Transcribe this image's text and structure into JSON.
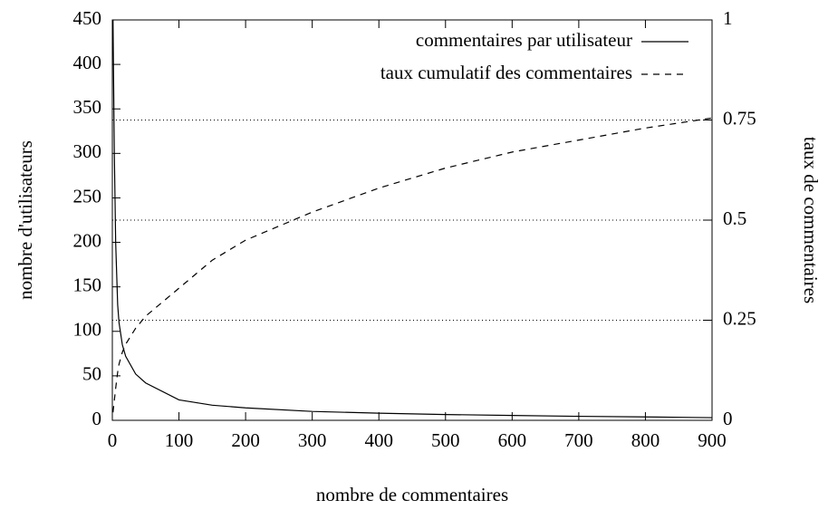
{
  "chart_data": {
    "type": "line",
    "x_label": "nombre de commentaires",
    "y_label": "nombre d'utilisateurs",
    "y2_label": "taux de commentaires",
    "x": [
      1,
      3,
      5,
      8,
      10,
      15,
      20,
      35,
      50,
      100,
      150,
      200,
      300,
      400,
      500,
      600,
      700,
      800,
      900
    ],
    "series": [
      {
        "name": "commentaires par utilisateur",
        "color": "#000000",
        "dash": "solid",
        "values": [
          450,
          300,
          200,
          130,
          110,
          85,
          72,
          52,
          42,
          23,
          17,
          14,
          10,
          8,
          6.5,
          5.5,
          4.5,
          3.8,
          3
        ]
      },
      {
        "name": "taux cumulatif des commentaires",
        "color": "#000000",
        "dash": "dashed",
        "axis": "y2",
        "values": [
          0.02,
          0.05,
          0.08,
          0.12,
          0.14,
          0.17,
          0.19,
          0.23,
          0.26,
          0.33,
          0.4,
          0.45,
          0.52,
          0.58,
          0.63,
          0.67,
          0.7,
          0.73,
          0.755
        ]
      }
    ],
    "xlim": [
      0,
      900
    ],
    "xticks": [
      0,
      100,
      200,
      300,
      400,
      500,
      600,
      700,
      800,
      900
    ],
    "ylim": [
      0,
      450
    ],
    "yticks": [
      0,
      50,
      100,
      150,
      200,
      250,
      300,
      350,
      400,
      450
    ],
    "y2lim": [
      0,
      1
    ],
    "y2ticks": [
      0,
      0.25,
      0.5,
      0.75,
      1
    ],
    "grid": "y2",
    "legend": "top-right"
  }
}
